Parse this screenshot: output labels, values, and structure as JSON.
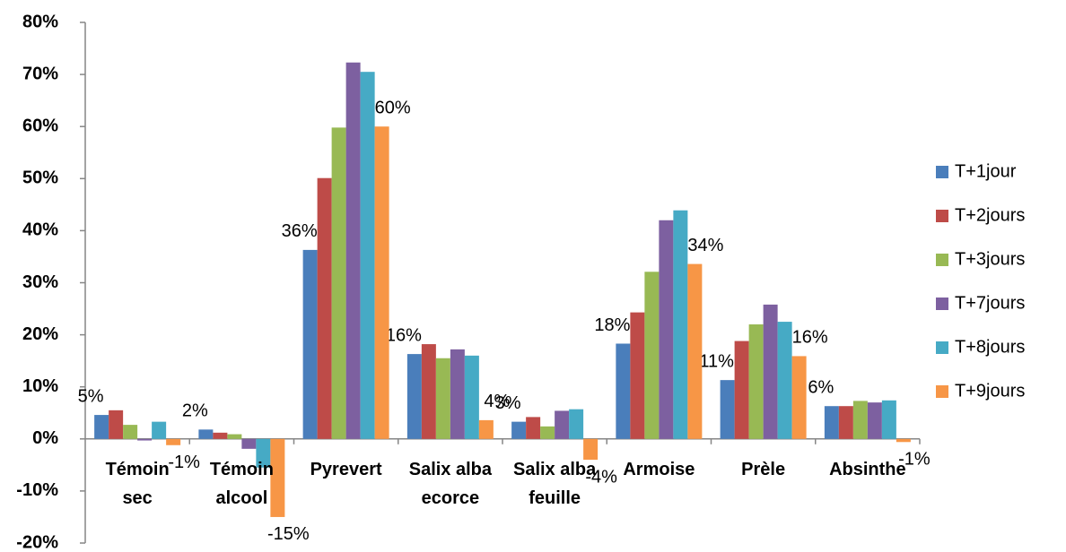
{
  "chart_data": {
    "type": "bar",
    "categories": [
      "Témoin sec",
      "Témoin alcool",
      "Pyrevert",
      "Salix alba ecorce",
      "Salix alba feuille",
      "Armoise",
      "Prèle",
      "Absinthe"
    ],
    "series": [
      {
        "name": "T+1jour",
        "color": "#4a7ebb",
        "values": [
          4.6,
          1.8,
          36.3,
          16.3,
          3.3,
          18.3,
          11.3,
          6.3
        ],
        "value_labels": [
          "5%",
          "2%",
          "36%",
          "16%",
          "3%",
          "18%",
          "11%",
          "6%"
        ]
      },
      {
        "name": "T+2jours",
        "color": "#be4b48",
        "values": [
          5.5,
          1.2,
          50.1,
          18.2,
          4.2,
          24.3,
          18.8,
          6.3
        ]
      },
      {
        "name": "T+3jours",
        "color": "#98b954",
        "values": [
          2.7,
          0.9,
          59.8,
          15.5,
          2.4,
          32.1,
          22.0,
          7.3
        ]
      },
      {
        "name": "T+7jours",
        "color": "#7d60a0",
        "values": [
          -0.3,
          -1.9,
          72.3,
          17.2,
          5.4,
          42.0,
          25.8,
          7.0
        ]
      },
      {
        "name": "T+8jours",
        "color": "#46aac5",
        "values": [
          3.3,
          -5.5,
          70.5,
          16.0,
          5.7,
          43.9,
          22.5,
          7.4
        ]
      },
      {
        "name": "T+9jours",
        "color": "#f79646",
        "values": [
          -1.2,
          -15.0,
          60.0,
          3.6,
          -4.0,
          33.6,
          15.9,
          -0.6
        ],
        "value_labels": [
          "-1%",
          "-15%",
          "60%",
          "4%",
          "-4%",
          "34%",
          "16%",
          "-1%"
        ]
      }
    ],
    "ylim": [
      -20,
      80
    ],
    "yticks": [
      {
        "value": -20,
        "label": "-20%"
      },
      {
        "value": -10,
        "label": "-10%"
      },
      {
        "value": 0,
        "label": "0%"
      },
      {
        "value": 10,
        "label": "10%"
      },
      {
        "value": 20,
        "label": "20%"
      },
      {
        "value": 30,
        "label": "30%"
      },
      {
        "value": 40,
        "label": "40%"
      },
      {
        "value": 50,
        "label": "50%"
      },
      {
        "value": 60,
        "label": "60%"
      },
      {
        "value": 70,
        "label": "70%"
      },
      {
        "value": 80,
        "label": "80%"
      }
    ],
    "grid": false,
    "legend": "right"
  }
}
